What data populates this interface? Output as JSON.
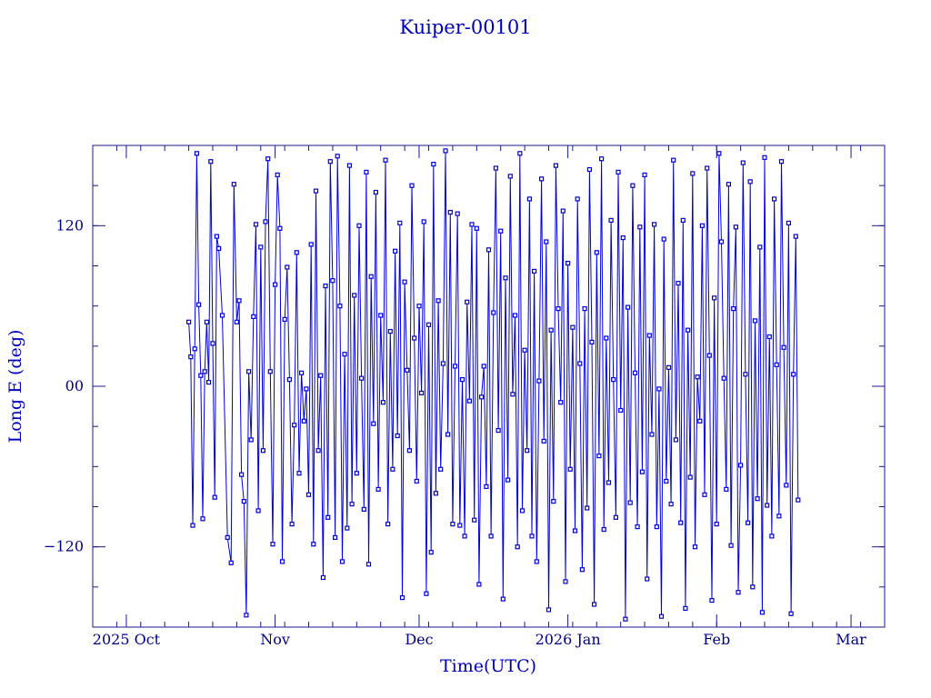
{
  "chart_data": {
    "type": "scatter",
    "title": "Kuiper-00101",
    "xlabel": "Time(UTC)",
    "ylabel": "Long E (deg)",
    "x_ticks": [
      {
        "label": "2025 Oct",
        "value": "2025-10-01"
      },
      {
        "label": "Nov",
        "value": "2025-11-01"
      },
      {
        "label": "Dec",
        "value": "2025-12-01"
      },
      {
        "label": "2026 Jan",
        "value": "2026-01-01"
      },
      {
        "label": "Feb",
        "value": "2026-02-01"
      },
      {
        "label": "Mar",
        "value": "2026-03-01"
      }
    ],
    "xlim": [
      "2025-09-24",
      "2026-03-08"
    ],
    "y_ticks": [
      {
        "label": "−120",
        "value": -120
      },
      {
        "label": "00",
        "value": 0
      },
      {
        "label": "120",
        "value": 120
      }
    ],
    "ylim": [
      -180,
      180
    ],
    "grid": false,
    "connect_points": true,
    "marker": "square",
    "series": [
      {
        "color": "#0000dd",
        "points": [
          [
            "2025-10-14T00:00",
            48
          ],
          [
            "2025-10-14T10:00",
            22
          ],
          [
            "2025-10-14T20:00",
            -104
          ],
          [
            "2025-10-15T06:00",
            28
          ],
          [
            "2025-10-15T16:00",
            174
          ],
          [
            "2025-10-16T02:00",
            61
          ],
          [
            "2025-10-16T12:00",
            8
          ],
          [
            "2025-10-16T22:00",
            -99
          ],
          [
            "2025-10-17T08:00",
            11
          ],
          [
            "2025-10-17T18:00",
            48
          ],
          [
            "2025-10-18T04:00",
            3
          ],
          [
            "2025-10-18T14:00",
            168
          ],
          [
            "2025-10-19T00:00",
            32
          ],
          [
            "2025-10-19T10:00",
            -83
          ],
          [
            "2025-10-19T20:00",
            112
          ],
          [
            "2025-10-20T06:00",
            103
          ],
          [
            "2025-10-21T00:00",
            53
          ],
          [
            "2025-10-22T02:00",
            -113
          ],
          [
            "2025-10-22T20:00",
            -132
          ],
          [
            "2025-10-23T10:00",
            151
          ],
          [
            "2025-10-24T00:00",
            48
          ],
          [
            "2025-10-24T12:00",
            64
          ],
          [
            "2025-10-25T00:00",
            -66
          ],
          [
            "2025-10-25T12:00",
            -86
          ],
          [
            "2025-10-26T00:00",
            -171
          ],
          [
            "2025-10-26T12:00",
            11
          ],
          [
            "2025-10-27T00:00",
            -40
          ],
          [
            "2025-10-27T12:00",
            52
          ],
          [
            "2025-10-28T00:00",
            121
          ],
          [
            "2025-10-28T12:00",
            -93
          ],
          [
            "2025-10-29T00:00",
            104
          ],
          [
            "2025-10-29T12:00",
            -48
          ],
          [
            "2025-10-30T00:00",
            123
          ],
          [
            "2025-10-30T12:00",
            170
          ],
          [
            "2025-10-31T00:00",
            11
          ],
          [
            "2025-10-31T12:00",
            -118
          ],
          [
            "2025-11-01T00:00",
            76
          ],
          [
            "2025-11-01T12:00",
            158
          ],
          [
            "2025-11-02T00:00",
            118
          ],
          [
            "2025-11-02T12:00",
            -131
          ],
          [
            "2025-11-03T00:00",
            50
          ],
          [
            "2025-11-03T12:00",
            89
          ],
          [
            "2025-11-04T00:00",
            5
          ],
          [
            "2025-11-04T12:00",
            -103
          ],
          [
            "2025-11-05T00:00",
            -29
          ],
          [
            "2025-11-05T12:00",
            100
          ],
          [
            "2025-11-06T00:00",
            -65
          ],
          [
            "2025-11-06T12:00",
            10
          ],
          [
            "2025-11-07T00:00",
            -26
          ],
          [
            "2025-11-07T12:00",
            -2
          ],
          [
            "2025-11-08T00:00",
            -81
          ],
          [
            "2025-11-08T12:00",
            106
          ],
          [
            "2025-11-09T00:00",
            -118
          ],
          [
            "2025-11-09T12:00",
            146
          ],
          [
            "2025-11-10T00:00",
            -48
          ],
          [
            "2025-11-10T12:00",
            8
          ],
          [
            "2025-11-11T00:00",
            -143
          ],
          [
            "2025-11-11T12:00",
            75
          ],
          [
            "2025-11-12T00:00",
            -98
          ],
          [
            "2025-11-12T12:00",
            168
          ],
          [
            "2025-11-13T00:00",
            79
          ],
          [
            "2025-11-13T12:00",
            -113
          ],
          [
            "2025-11-14T00:00",
            172
          ],
          [
            "2025-11-14T12:00",
            60
          ],
          [
            "2025-11-15T00:00",
            -131
          ],
          [
            "2025-11-15T12:00",
            24
          ],
          [
            "2025-11-16T00:00",
            -106
          ],
          [
            "2025-11-16T12:00",
            165
          ],
          [
            "2025-11-17T00:00",
            -88
          ],
          [
            "2025-11-17T12:00",
            68
          ],
          [
            "2025-11-18T00:00",
            -65
          ],
          [
            "2025-11-18T12:00",
            120
          ],
          [
            "2025-11-19T00:00",
            6
          ],
          [
            "2025-11-19T12:00",
            -92
          ],
          [
            "2025-11-20T00:00",
            160
          ],
          [
            "2025-11-20T12:00",
            -133
          ],
          [
            "2025-11-21T00:00",
            82
          ],
          [
            "2025-11-21T12:00",
            -28
          ],
          [
            "2025-11-22T00:00",
            145
          ],
          [
            "2025-11-22T12:00",
            -77
          ],
          [
            "2025-11-23T00:00",
            53
          ],
          [
            "2025-11-23T12:00",
            -12
          ],
          [
            "2025-11-24T00:00",
            169
          ],
          [
            "2025-11-24T12:00",
            -103
          ],
          [
            "2025-11-25T00:00",
            41
          ],
          [
            "2025-11-25T12:00",
            -62
          ],
          [
            "2025-11-26T00:00",
            101
          ],
          [
            "2025-11-26T12:00",
            -37
          ],
          [
            "2025-11-27T00:00",
            122
          ],
          [
            "2025-11-27T12:00",
            -158
          ],
          [
            "2025-11-28T00:00",
            78
          ],
          [
            "2025-11-28T12:00",
            12
          ],
          [
            "2025-11-29T00:00",
            -48
          ],
          [
            "2025-11-29T12:00",
            150
          ],
          [
            "2025-11-30T00:00",
            36
          ],
          [
            "2025-11-30T12:00",
            -71
          ],
          [
            "2025-12-01T00:00",
            60
          ],
          [
            "2025-12-01T12:00",
            -5
          ],
          [
            "2025-12-02T00:00",
            123
          ],
          [
            "2025-12-02T12:00",
            -155
          ],
          [
            "2025-12-03T00:00",
            46
          ],
          [
            "2025-12-03T12:00",
            -124
          ],
          [
            "2025-12-04T00:00",
            166
          ],
          [
            "2025-12-04T12:00",
            -80
          ],
          [
            "2025-12-05T00:00",
            64
          ],
          [
            "2025-12-05T12:00",
            -62
          ],
          [
            "2025-12-06T00:00",
            17
          ],
          [
            "2025-12-06T12:00",
            176
          ],
          [
            "2025-12-07T00:00",
            -36
          ],
          [
            "2025-12-07T12:00",
            130
          ],
          [
            "2025-12-08T00:00",
            -103
          ],
          [
            "2025-12-08T12:00",
            15
          ],
          [
            "2025-12-09T00:00",
            129
          ],
          [
            "2025-12-09T12:00",
            -104
          ],
          [
            "2025-12-10T00:00",
            5
          ],
          [
            "2025-12-10T12:00",
            -112
          ],
          [
            "2025-12-11T00:00",
            63
          ],
          [
            "2025-12-11T12:00",
            -11
          ],
          [
            "2025-12-12T00:00",
            121
          ],
          [
            "2025-12-12T12:00",
            -100
          ],
          [
            "2025-12-13T00:00",
            118
          ],
          [
            "2025-12-13T12:00",
            -148
          ],
          [
            "2025-12-14T00:00",
            -8
          ],
          [
            "2025-12-14T12:00",
            15
          ],
          [
            "2025-12-15T00:00",
            -75
          ],
          [
            "2025-12-15T12:00",
            102
          ],
          [
            "2025-12-16T00:00",
            -112
          ],
          [
            "2025-12-16T12:00",
            55
          ],
          [
            "2025-12-17T00:00",
            163
          ],
          [
            "2025-12-17T12:00",
            -33
          ],
          [
            "2025-12-18T00:00",
            116
          ],
          [
            "2025-12-18T12:00",
            -159
          ],
          [
            "2025-12-19T00:00",
            81
          ],
          [
            "2025-12-19T12:00",
            -70
          ],
          [
            "2025-12-20T00:00",
            157
          ],
          [
            "2025-12-20T12:00",
            -6
          ],
          [
            "2025-12-21T00:00",
            53
          ],
          [
            "2025-12-21T12:00",
            -120
          ],
          [
            "2025-12-22T00:00",
            174
          ],
          [
            "2025-12-22T12:00",
            -93
          ],
          [
            "2025-12-23T00:00",
            27
          ],
          [
            "2025-12-23T12:00",
            -48
          ],
          [
            "2025-12-24T00:00",
            140
          ],
          [
            "2025-12-24T12:00",
            -112
          ],
          [
            "2025-12-25T00:00",
            86
          ],
          [
            "2025-12-25T12:00",
            -131
          ],
          [
            "2025-12-26T00:00",
            4
          ],
          [
            "2025-12-26T12:00",
            155
          ],
          [
            "2025-12-27T00:00",
            -41
          ],
          [
            "2025-12-27T12:00",
            108
          ],
          [
            "2025-12-28T00:00",
            -167
          ],
          [
            "2025-12-28T12:00",
            42
          ],
          [
            "2025-12-29T00:00",
            -86
          ],
          [
            "2025-12-29T12:00",
            165
          ],
          [
            "2025-12-30T00:00",
            58
          ],
          [
            "2025-12-30T12:00",
            -12
          ],
          [
            "2025-12-31T00:00",
            131
          ],
          [
            "2025-12-31T12:00",
            -146
          ],
          [
            "2026-01-01T00:00",
            92
          ],
          [
            "2026-01-01T12:00",
            -62
          ],
          [
            "2026-01-02T00:00",
            44
          ],
          [
            "2026-01-02T12:00",
            -108
          ],
          [
            "2026-01-03T00:00",
            140
          ],
          [
            "2026-01-03T12:00",
            17
          ],
          [
            "2026-01-04T00:00",
            -137
          ],
          [
            "2026-01-04T12:00",
            58
          ],
          [
            "2026-01-05T00:00",
            -91
          ],
          [
            "2026-01-05T12:00",
            162
          ],
          [
            "2026-01-06T00:00",
            33
          ],
          [
            "2026-01-06T12:00",
            -163
          ],
          [
            "2026-01-07T00:00",
            100
          ],
          [
            "2026-01-07T12:00",
            -52
          ],
          [
            "2026-01-08T00:00",
            170
          ],
          [
            "2026-01-08T12:00",
            -107
          ],
          [
            "2026-01-09T00:00",
            36
          ],
          [
            "2026-01-09T12:00",
            -72
          ],
          [
            "2026-01-10T00:00",
            124
          ],
          [
            "2026-01-10T12:00",
            5
          ],
          [
            "2026-01-11T00:00",
            -98
          ],
          [
            "2026-01-11T12:00",
            160
          ],
          [
            "2026-01-12T00:00",
            -18
          ],
          [
            "2026-01-12T12:00",
            111
          ],
          [
            "2026-01-13T00:00",
            -174
          ],
          [
            "2026-01-13T12:00",
            59
          ],
          [
            "2026-01-14T00:00",
            -87
          ],
          [
            "2026-01-14T12:00",
            150
          ],
          [
            "2026-01-15T00:00",
            10
          ],
          [
            "2026-01-15T12:00",
            -105
          ],
          [
            "2026-01-16T00:00",
            119
          ],
          [
            "2026-01-16T12:00",
            -64
          ],
          [
            "2026-01-17T00:00",
            158
          ],
          [
            "2026-01-17T12:00",
            -144
          ],
          [
            "2026-01-18T00:00",
            38
          ],
          [
            "2026-01-18T12:00",
            -36
          ],
          [
            "2026-01-19T00:00",
            121
          ],
          [
            "2026-01-19T12:00",
            -105
          ],
          [
            "2026-01-20T00:00",
            -2
          ],
          [
            "2026-01-20T12:00",
            -172
          ],
          [
            "2026-01-21T00:00",
            110
          ],
          [
            "2026-01-21T12:00",
            -71
          ],
          [
            "2026-01-22T00:00",
            14
          ],
          [
            "2026-01-22T12:00",
            -88
          ],
          [
            "2026-01-23T00:00",
            169
          ],
          [
            "2026-01-23T12:00",
            -40
          ],
          [
            "2026-01-24T00:00",
            77
          ],
          [
            "2026-01-24T12:00",
            -102
          ],
          [
            "2026-01-25T00:00",
            124
          ],
          [
            "2026-01-25T12:00",
            -166
          ],
          [
            "2026-01-26T00:00",
            42
          ],
          [
            "2026-01-26T12:00",
            -68
          ],
          [
            "2026-01-27T00:00",
            159
          ],
          [
            "2026-01-27T12:00",
            -120
          ],
          [
            "2026-01-28T00:00",
            7
          ],
          [
            "2026-01-28T12:00",
            -26
          ],
          [
            "2026-01-29T00:00",
            120
          ],
          [
            "2026-01-29T12:00",
            -81
          ],
          [
            "2026-01-30T00:00",
            163
          ],
          [
            "2026-01-30T12:00",
            23
          ],
          [
            "2026-01-31T00:00",
            -160
          ],
          [
            "2026-01-31T12:00",
            66
          ],
          [
            "2026-02-01T00:00",
            -103
          ],
          [
            "2026-02-01T12:00",
            174
          ],
          [
            "2026-02-02T00:00",
            108
          ],
          [
            "2026-02-02T12:00",
            6
          ],
          [
            "2026-02-03T00:00",
            -77
          ],
          [
            "2026-02-03T12:00",
            151
          ],
          [
            "2026-02-04T00:00",
            -119
          ],
          [
            "2026-02-04T12:00",
            58
          ],
          [
            "2026-02-05T00:00",
            119
          ],
          [
            "2026-02-05T12:00",
            -154
          ],
          [
            "2026-02-06T00:00",
            -59
          ],
          [
            "2026-02-06T12:00",
            167
          ],
          [
            "2026-02-07T00:00",
            9
          ],
          [
            "2026-02-07T12:00",
            -102
          ],
          [
            "2026-02-08T00:00",
            153
          ],
          [
            "2026-02-08T12:00",
            -150
          ],
          [
            "2026-02-09T00:00",
            49
          ],
          [
            "2026-02-09T12:00",
            -84
          ],
          [
            "2026-02-10T00:00",
            104
          ],
          [
            "2026-02-10T12:00",
            -169
          ],
          [
            "2026-02-11T00:00",
            171
          ],
          [
            "2026-02-11T12:00",
            -89
          ],
          [
            "2026-02-12T00:00",
            37
          ],
          [
            "2026-02-12T12:00",
            -112
          ],
          [
            "2026-02-13T00:00",
            140
          ],
          [
            "2026-02-13T12:00",
            16
          ],
          [
            "2026-02-14T00:00",
            -97
          ],
          [
            "2026-02-14T12:00",
            168
          ],
          [
            "2026-02-15T00:00",
            29
          ],
          [
            "2026-02-15T12:00",
            -74
          ],
          [
            "2026-02-16T00:00",
            122
          ],
          [
            "2026-02-16T12:00",
            -170
          ],
          [
            "2026-02-17T00:00",
            9
          ],
          [
            "2026-02-17T12:00",
            112
          ],
          [
            "2026-02-17T23:00",
            -85
          ]
        ]
      }
    ]
  }
}
